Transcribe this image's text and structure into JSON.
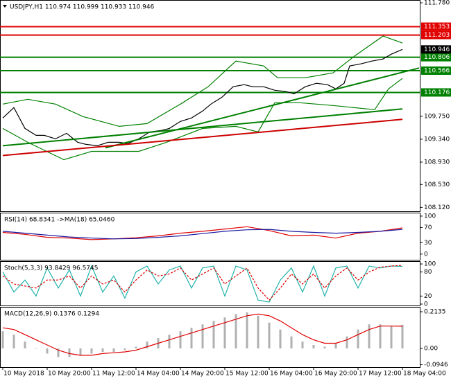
{
  "chart_data": [
    {
      "type": "line",
      "title": "USDJPY,H1  110.974 110.999 110.933 110.946",
      "ylim": [
        108.05,
        111.83
      ],
      "yticks": [
        {
          "value": 111.78,
          "label": "111.780"
        },
        {
          "value": 109.75,
          "label": "109.750"
        },
        {
          "value": 109.34,
          "label": "109.340"
        },
        {
          "value": 108.93,
          "label": "108.930"
        },
        {
          "value": 108.53,
          "label": "108.530"
        },
        {
          "value": 108.12,
          "label": "108.120"
        }
      ],
      "levels": [
        {
          "value": 111.353,
          "color": "#e00000"
        },
        {
          "value": 111.203,
          "color": "#e00000"
        },
        {
          "value": 110.806,
          "color": "#008000"
        },
        {
          "value": 110.566,
          "color": "#008000"
        },
        {
          "value": 110.176,
          "color": "#008000"
        }
      ],
      "series": [
        {
          "color": "#000000",
          "x": [
            0,
            4,
            8,
            12,
            15,
            19,
            23,
            27,
            30,
            34,
            38,
            42,
            45,
            49,
            53,
            57,
            60,
            64,
            68,
            72,
            75,
            79,
            83,
            87,
            90,
            94,
            98,
            102,
            105,
            109,
            113,
            117,
            120,
            123,
            125,
            129,
            133,
            137,
            140,
            144
          ],
          "values": [
            109.719,
            109.905,
            109.532,
            109.408,
            109.408,
            109.346,
            109.445,
            109.284,
            109.247,
            109.222,
            109.284,
            109.284,
            109.259,
            109.346,
            109.47,
            109.495,
            109.532,
            109.657,
            109.719,
            109.843,
            109.967,
            110.091,
            110.278,
            110.315,
            110.278,
            110.278,
            110.215,
            110.191,
            110.153,
            110.278,
            110.34,
            110.315,
            110.24,
            110.34,
            110.65,
            110.687,
            110.737,
            110.774,
            110.861,
            110.946
          ]
        },
        {
          "color": "#008000",
          "x": [
            0,
            9,
            19,
            29,
            42,
            52,
            64,
            74,
            84,
            94,
            99,
            109,
            119,
            127,
            137,
            144
          ],
          "values": [
            109.967,
            110.054,
            109.967,
            109.743,
            109.57,
            109.619,
            109.967,
            110.278,
            110.737,
            110.65,
            110.439,
            110.439,
            110.526,
            110.836,
            111.184,
            111.06
          ]
        },
        {
          "color": "#008000",
          "x": [
            0,
            9,
            22,
            32,
            49,
            59,
            72,
            84,
            92,
            98,
            107,
            119,
            134,
            139,
            144
          ],
          "values": [
            109.532,
            109.284,
            108.973,
            109.122,
            109.122,
            109.284,
            109.532,
            109.57,
            109.47,
            109.992,
            109.992,
            109.942,
            109.868,
            110.24,
            110.427
          ]
        },
        {
          "color": "#008000",
          "x": [
            0,
            144
          ],
          "values": [
            109.222,
            109.88
          ]
        },
        {
          "color": "#008000",
          "x": [
            37,
            150
          ],
          "values": [
            109.185,
            110.613
          ]
        },
        {
          "color": "#cc0000",
          "x": [
            0,
            144
          ],
          "values": [
            109.048,
            109.694
          ]
        }
      ]
    },
    {
      "type": "line",
      "title": "RSI(14) 68.8341  ->MA(18) 65.0460",
      "ylim": [
        -15,
        109
      ],
      "yticks": [
        100,
        70,
        30,
        0
      ],
      "series": [
        {
          "color": "#e00000",
          "x": [
            0,
            8,
            16,
            24,
            32,
            40,
            48,
            56,
            64,
            72,
            80,
            88,
            96,
            104,
            112,
            120,
            128,
            136,
            144
          ],
          "values": [
            57,
            52,
            44,
            42,
            38,
            40,
            43,
            48,
            55,
            60,
            66,
            72,
            62,
            48,
            50,
            42,
            55,
            60,
            68.8341
          ]
        },
        {
          "color": "#1a1aa0",
          "x": [
            0,
            8,
            16,
            24,
            32,
            40,
            48,
            56,
            64,
            72,
            80,
            88,
            96,
            104,
            112,
            120,
            128,
            136,
            144
          ],
          "values": [
            60,
            55,
            50,
            45,
            42,
            40,
            41,
            44,
            48,
            54,
            60,
            64,
            65,
            60,
            57,
            55,
            57,
            60,
            65.046
          ]
        }
      ]
    },
    {
      "type": "line",
      "title": "Stoch(5,3,3) 93.8429 96.5745",
      "ylim": [
        -3.5,
        107
      ],
      "yticks": [
        100,
        80,
        20,
        0
      ],
      "series": [
        {
          "color": "#20b2aa",
          "x": [
            0,
            4,
            8,
            12,
            16,
            20,
            24,
            28,
            32,
            36,
            40,
            44,
            48,
            52,
            56,
            60,
            64,
            68,
            72,
            76,
            80,
            84,
            88,
            92,
            96,
            100,
            104,
            108,
            112,
            116,
            120,
            124,
            128,
            132,
            136,
            140,
            144
          ],
          "values": [
            80,
            30,
            60,
            20,
            90,
            40,
            85,
            20,
            95,
            30,
            70,
            15,
            80,
            95,
            50,
            85,
            95,
            40,
            90,
            95,
            20,
            95,
            85,
            10,
            5,
            60,
            90,
            30,
            95,
            20,
            90,
            95,
            40,
            95,
            90,
            95,
            93.8429
          ]
        },
        {
          "color": "#e00000",
          "dash": true,
          "x": [
            0,
            4,
            8,
            12,
            16,
            20,
            24,
            28,
            32,
            36,
            40,
            44,
            48,
            52,
            56,
            60,
            64,
            68,
            72,
            76,
            80,
            84,
            88,
            92,
            96,
            100,
            104,
            108,
            112,
            116,
            120,
            124,
            128,
            132,
            136,
            140,
            144
          ],
          "values": [
            70,
            50,
            45,
            40,
            60,
            60,
            70,
            40,
            70,
            50,
            60,
            30,
            60,
            85,
            70,
            75,
            90,
            60,
            75,
            90,
            50,
            70,
            90,
            40,
            10,
            40,
            75,
            50,
            75,
            40,
            70,
            90,
            60,
            80,
            92,
            95,
            96.5745
          ]
        }
      ]
    },
    {
      "type": "bar",
      "title": "MACD(12,26,9) 0.1376 0.1294",
      "ylim": [
        -0.1088,
        0.2417
      ],
      "yticks": [
        0.2135,
        {
          "value": 0,
          "label": "0.00"
        },
        -0.0946
      ],
      "xlim": [
        -1,
        150.25
      ],
      "xticks": [
        {
          "value": 0,
          "label": "10 May 2018"
        },
        {
          "value": 16,
          "label": "10 May 20:00"
        },
        {
          "value": 32,
          "label": "11 May 12:00"
        },
        {
          "value": 48,
          "label": "14 May 04:00"
        },
        {
          "value": 64,
          "label": "14 May 20:00"
        },
        {
          "value": 80,
          "label": "15 May 12:00"
        },
        {
          "value": 96,
          "label": "16 May 04:00"
        },
        {
          "value": 112,
          "label": "16 May 20:00"
        },
        {
          "value": 128,
          "label": "17 May 12:00"
        },
        {
          "value": 144,
          "label": "18 May 04:00"
        }
      ],
      "series": [
        {
          "type": "bar",
          "color": "#b0b0b0",
          "x": [
            0,
            4,
            8,
            12,
            16,
            20,
            24,
            28,
            32,
            36,
            40,
            44,
            48,
            52,
            56,
            60,
            64,
            68,
            72,
            76,
            80,
            84,
            88,
            92,
            96,
            100,
            104,
            108,
            112,
            116,
            120,
            124,
            128,
            132,
            136,
            140,
            144
          ],
          "values": [
            0.1,
            0.08,
            0.04,
            0,
            -0.03,
            -0.05,
            -0.05,
            -0.04,
            -0.03,
            -0.02,
            -0.02,
            -0.01,
            0.01,
            0.04,
            0.06,
            0.08,
            0.1,
            0.12,
            0.14,
            0.16,
            0.18,
            0.2,
            0.21,
            0.19,
            0.15,
            0.11,
            0.07,
            0.04,
            0.02,
            0.01,
            0.03,
            0.07,
            0.11,
            0.14,
            0.14,
            0.13,
            0.1376
          ]
        },
        {
          "type": "line",
          "color": "#e00000",
          "x": [
            0,
            4,
            8,
            12,
            16,
            20,
            24,
            28,
            32,
            36,
            40,
            44,
            48,
            52,
            56,
            60,
            64,
            68,
            72,
            76,
            80,
            84,
            88,
            92,
            96,
            100,
            104,
            108,
            112,
            116,
            120,
            124,
            128,
            132,
            136,
            140,
            144
          ],
          "values": [
            0.12,
            0.11,
            0.08,
            0.05,
            0.02,
            -0.01,
            -0.03,
            -0.04,
            -0.04,
            -0.03,
            -0.025,
            -0.02,
            -0.01,
            0.01,
            0.03,
            0.05,
            0.07,
            0.09,
            0.11,
            0.13,
            0.15,
            0.17,
            0.19,
            0.2,
            0.19,
            0.16,
            0.12,
            0.08,
            0.05,
            0.03,
            0.03,
            0.05,
            0.08,
            0.11,
            0.13,
            0.13,
            0.1294
          ]
        }
      ]
    }
  ]
}
